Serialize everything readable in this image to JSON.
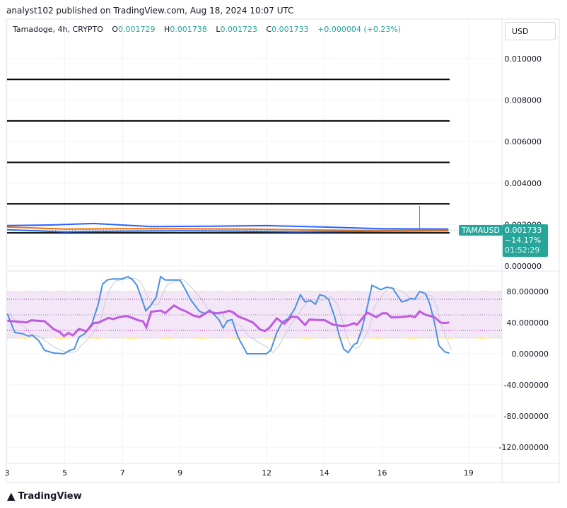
{
  "header": {
    "published": "analyst102 published on TradingView.com, Aug 18, 2024 10:07 UTC",
    "symbol": "Tamadoge, 4h, CRYPTO",
    "open_label": "O",
    "open": "0.001729",
    "high_label": "H",
    "high": "0.001738",
    "low_label": "L",
    "low": "0.001723",
    "close_label": "C",
    "close": "0.001733",
    "change": "+0.000004 (+0.23%)"
  },
  "currency_button": "USD",
  "price_tag": {
    "ticker": "TAMAUSD",
    "price": "0.001733",
    "change_pct": "−14.17%",
    "countdown": "01:52:29"
  },
  "footer": {
    "logo_text": "TradingView"
  },
  "colors": {
    "up": "#26a69a",
    "down": "#ef5350",
    "bb": "#2962ff",
    "ma": "#ff6d00",
    "stoch_k": "#4a90e2",
    "rsi": "#c05ae0",
    "band": "#f3e6f7",
    "text": "#131722"
  },
  "chart_data": [
    {
      "type": "line",
      "pane": "price",
      "x_unit": "day of August 2024",
      "y_ticks": [
        "0.010000",
        "0.008000",
        "0.006000",
        "0.004000",
        "0.002000",
        "0.000000"
      ],
      "y_tick_values": [
        0.01,
        0.008,
        0.006,
        0.004,
        0.002,
        0.0
      ],
      "ylim": [
        0,
        0.0115
      ],
      "horizontal_levels": [
        0.009,
        0.007,
        0.005,
        0.003,
        0.0016
      ],
      "upper_band": [
        [
          3,
          0.00195
        ],
        [
          4.5,
          0.00198
        ],
        [
          6,
          0.00205
        ],
        [
          8,
          0.0019
        ],
        [
          10,
          0.00192
        ],
        [
          12,
          0.00195
        ],
        [
          14,
          0.00188
        ],
        [
          16,
          0.0018
        ],
        [
          18.3,
          0.00178
        ]
      ],
      "middle_ma": [
        [
          3,
          0.00188
        ],
        [
          5,
          0.00178
        ],
        [
          7,
          0.0018
        ],
        [
          9,
          0.0018
        ],
        [
          11,
          0.00178
        ],
        [
          13,
          0.00175
        ],
        [
          15,
          0.00172
        ],
        [
          18.3,
          0.00172
        ]
      ],
      "lower_band": [
        [
          3,
          0.00175
        ],
        [
          5,
          0.00165
        ],
        [
          7,
          0.00168
        ],
        [
          9,
          0.0017
        ],
        [
          11,
          0.00168
        ],
        [
          13,
          0.00165
        ],
        [
          16,
          0.00168
        ],
        [
          18.3,
          0.0017
        ]
      ],
      "wick_high": [
        [
          17.3,
          0.0029
        ]
      ],
      "last_price": 0.001733
    },
    {
      "type": "line",
      "pane": "oscillator",
      "x_ticks": [
        "3",
        "5",
        "7",
        "9",
        "12",
        "14",
        "16",
        "19"
      ],
      "x_tick_values": [
        3,
        5,
        7,
        9,
        12,
        14,
        16,
        19
      ],
      "y_ticks": [
        "80.000000",
        "40.000000",
        "0.000000",
        "-40.000000",
        "-80.000000",
        "-120.000000"
      ],
      "y_tick_values": [
        80,
        40,
        0,
        -40,
        -80,
        -120
      ],
      "ylim": [
        -140,
        110
      ],
      "band": [
        20,
        80
      ],
      "guide_levels": [
        70,
        50,
        30
      ],
      "series": [
        {
          "key": "stoch_k",
          "points": [
            [
              3.01,
              51.5
            ],
            [
              3.27,
              27.3
            ],
            [
              3.53,
              25.8
            ],
            [
              3.74,
              22.7
            ],
            [
              3.89,
              23.6
            ],
            [
              4.1,
              16.7
            ],
            [
              4.3,
              4.5
            ],
            [
              4.61,
              0.9
            ],
            [
              4.97,
              0
            ],
            [
              5.18,
              4.5
            ],
            [
              5.33,
              6.1
            ],
            [
              5.49,
              21.2
            ],
            [
              5.69,
              25.8
            ],
            [
              5.95,
              39.4
            ],
            [
              6.16,
              63.6
            ],
            [
              6.31,
              89.4
            ],
            [
              6.47,
              94.8
            ],
            [
              6.67,
              96.1
            ],
            [
              6.98,
              96.1
            ],
            [
              7.19,
              99.1
            ],
            [
              7.34,
              95.5
            ],
            [
              7.5,
              87.9
            ],
            [
              7.65,
              72.7
            ],
            [
              7.81,
              55.2
            ],
            [
              7.98,
              62.1
            ],
            [
              8.17,
              72.7
            ],
            [
              8.32,
              99.1
            ],
            [
              8.48,
              94.8
            ],
            [
              8.99,
              94.8
            ],
            [
              9.15,
              84.8
            ],
            [
              9.36,
              69.7
            ],
            [
              9.67,
              54.5
            ],
            [
              9.87,
              51.5
            ],
            [
              10.03,
              56.1
            ],
            [
              10.34,
              43.9
            ],
            [
              10.49,
              33.3
            ],
            [
              10.64,
              42.4
            ],
            [
              10.8,
              43.9
            ],
            [
              11.01,
              21.2
            ],
            [
              11.32,
              0
            ],
            [
              11.99,
              0
            ],
            [
              12.14,
              4.5
            ],
            [
              12.35,
              27.3
            ],
            [
              12.55,
              40.9
            ],
            [
              12.76,
              45.5
            ],
            [
              12.97,
              57.6
            ],
            [
              13.17,
              75.8
            ],
            [
              13.33,
              66.7
            ],
            [
              13.53,
              68.2
            ],
            [
              13.69,
              63.6
            ],
            [
              13.84,
              75.8
            ],
            [
              14.0,
              74.2
            ],
            [
              14.15,
              69.7
            ],
            [
              14.36,
              47.0
            ],
            [
              14.51,
              24.2
            ],
            [
              14.67,
              6.1
            ],
            [
              14.82,
              1.5
            ],
            [
              15.03,
              12.1
            ],
            [
              15.13,
              13.6
            ],
            [
              15.29,
              30.3
            ],
            [
              15.49,
              60.6
            ],
            [
              15.65,
              87.9
            ],
            [
              15.96,
              82.4
            ],
            [
              16.16,
              85.5
            ],
            [
              16.37,
              84.2
            ],
            [
              16.68,
              66.7
            ],
            [
              16.84,
              68.2
            ],
            [
              16.99,
              71.2
            ],
            [
              17.14,
              70.3
            ],
            [
              17.3,
              80.0
            ],
            [
              17.51,
              77.3
            ],
            [
              17.66,
              63.6
            ],
            [
              17.82,
              39.4
            ],
            [
              17.97,
              10.6
            ],
            [
              18.18,
              2.4
            ],
            [
              18.33,
              0.9
            ]
          ]
        },
        {
          "key": "rsi",
          "points": [
            [
              3.01,
              42.4
            ],
            [
              3.48,
              40.9
            ],
            [
              3.68,
              40.3
            ],
            [
              3.84,
              43.0
            ],
            [
              4.3,
              41.8
            ],
            [
              4.61,
              31.8
            ],
            [
              4.82,
              27.9
            ],
            [
              4.97,
              22.7
            ],
            [
              5.13,
              26.7
            ],
            [
              5.28,
              23.6
            ],
            [
              5.49,
              31.8
            ],
            [
              5.75,
              28.8
            ],
            [
              6.0,
              39.4
            ],
            [
              6.16,
              40.0
            ],
            [
              6.52,
              46.1
            ],
            [
              6.67,
              44.5
            ],
            [
              6.88,
              47.0
            ],
            [
              7.14,
              48.5
            ],
            [
              7.34,
              46.1
            ],
            [
              7.55,
              43.0
            ],
            [
              7.71,
              41.8
            ],
            [
              7.83,
              33.9
            ],
            [
              7.99,
              53.9
            ],
            [
              8.32,
              55.5
            ],
            [
              8.48,
              52.4
            ],
            [
              8.79,
              62.1
            ],
            [
              8.99,
              57.6
            ],
            [
              9.2,
              54.5
            ],
            [
              9.46,
              49.1
            ],
            [
              9.67,
              47.0
            ],
            [
              9.98,
              54.5
            ],
            [
              10.23,
              52.1
            ],
            [
              10.49,
              53.0
            ],
            [
              10.7,
              55.2
            ],
            [
              10.85,
              53.0
            ],
            [
              11.01,
              47.9
            ],
            [
              11.26,
              44.5
            ],
            [
              11.52,
              40.3
            ],
            [
              11.78,
              30.9
            ],
            [
              11.94,
              29.4
            ],
            [
              12.09,
              33.3
            ],
            [
              12.35,
              45.5
            ],
            [
              12.61,
              38.5
            ],
            [
              12.86,
              47.6
            ],
            [
              13.07,
              47.0
            ],
            [
              13.33,
              37.0
            ],
            [
              13.48,
              43.9
            ],
            [
              13.84,
              43.3
            ],
            [
              14.0,
              43.3
            ],
            [
              14.31,
              37.3
            ],
            [
              14.62,
              35.8
            ],
            [
              14.82,
              36.4
            ],
            [
              15.03,
              39.4
            ],
            [
              15.13,
              37.3
            ],
            [
              15.49,
              53.0
            ],
            [
              15.8,
              47.0
            ],
            [
              16.01,
              52.1
            ],
            [
              16.16,
              52.1
            ],
            [
              16.32,
              46.7
            ],
            [
              16.63,
              47.0
            ],
            [
              16.99,
              48.5
            ],
            [
              17.14,
              47.0
            ],
            [
              17.3,
              54.5
            ],
            [
              17.51,
              50.0
            ],
            [
              17.82,
              47.0
            ],
            [
              18.02,
              40.3
            ],
            [
              18.18,
              39.4
            ],
            [
              18.33,
              40.3
            ]
          ]
        }
      ]
    }
  ]
}
